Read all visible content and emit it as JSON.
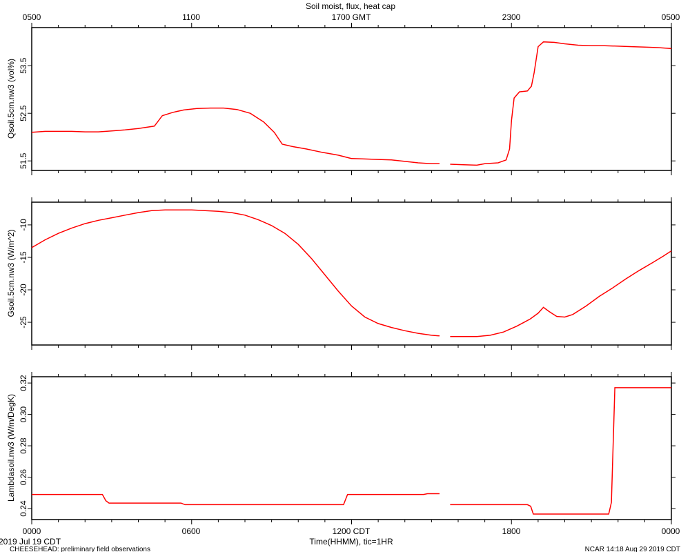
{
  "chart_data": {
    "type": "line",
    "title": "Soil moist, flux, heat cap",
    "top_axis": {
      "ticks": [
        "0500",
        "1100",
        "1700 GMT",
        "2300",
        "0500"
      ]
    },
    "bottom_axis": {
      "ticks": [
        "0000",
        "0600",
        "1200 CDT",
        "1800",
        "0000"
      ],
      "xlabel": "Time(HHMM), tic=1HR",
      "date_label": "2019 Jul 19 CDT"
    },
    "x_range_hours": [
      0,
      24
    ],
    "series_color": "#ff0000",
    "grid": false,
    "footer_left": "CHEESEHEAD: preliminary field observations",
    "footer_right": "NCAR 14:18 Aug 29 2019 CDT",
    "panels": [
      {
        "ylabel": "Qsoil.5cm.nw3 (vol%)",
        "ylim": [
          51.3,
          54.3
        ],
        "yticks": [
          51.5,
          52.5,
          53.5
        ],
        "ytick_labels": [
          "51.5",
          "52.5",
          "53.5"
        ],
        "segments": [
          [
            [
              0,
              52.1
            ],
            [
              0.5,
              52.12
            ],
            [
              1.0,
              52.12
            ],
            [
              1.5,
              52.12
            ],
            [
              2.0,
              52.11
            ],
            [
              2.5,
              52.11
            ],
            [
              3.0,
              52.13
            ],
            [
              3.5,
              52.15
            ],
            [
              4.0,
              52.18
            ],
            [
              4.6,
              52.23
            ],
            [
              4.9,
              52.45
            ],
            [
              5.3,
              52.52
            ],
            [
              5.7,
              52.57
            ],
            [
              6.2,
              52.6
            ],
            [
              6.7,
              52.61
            ],
            [
              7.2,
              52.61
            ],
            [
              7.7,
              52.58
            ],
            [
              8.2,
              52.5
            ],
            [
              8.7,
              52.32
            ],
            [
              9.1,
              52.1
            ],
            [
              9.4,
              51.85
            ],
            [
              9.8,
              51.8
            ],
            [
              10.3,
              51.75
            ],
            [
              10.9,
              51.68
            ],
            [
              11.5,
              51.62
            ],
            [
              12.0,
              51.55
            ],
            [
              12.5,
              51.54
            ],
            [
              13.0,
              51.53
            ],
            [
              13.5,
              51.52
            ],
            [
              14.0,
              51.49
            ],
            [
              14.5,
              51.46
            ],
            [
              15.0,
              51.44
            ],
            [
              15.3,
              51.44
            ]
          ],
          [
            [
              15.7,
              51.43
            ],
            [
              16.2,
              51.42
            ],
            [
              16.7,
              51.41
            ],
            [
              17.0,
              51.44
            ],
            [
              17.5,
              51.46
            ],
            [
              17.8,
              51.52
            ],
            [
              17.93,
              51.75
            ],
            [
              18.0,
              52.35
            ],
            [
              18.1,
              52.82
            ],
            [
              18.3,
              52.95
            ],
            [
              18.6,
              52.97
            ],
            [
              18.75,
              53.07
            ],
            [
              18.85,
              53.35
            ],
            [
              19.0,
              53.9
            ],
            [
              19.2,
              54.0
            ],
            [
              19.6,
              53.99
            ],
            [
              20.0,
              53.96
            ],
            [
              20.5,
              53.93
            ],
            [
              21.0,
              53.92
            ],
            [
              21.5,
              53.92
            ],
            [
              22.0,
              53.91
            ],
            [
              22.5,
              53.9
            ],
            [
              23.0,
              53.89
            ],
            [
              23.5,
              53.88
            ],
            [
              24.0,
              53.86
            ]
          ]
        ]
      },
      {
        "ylabel": "Gsoil.5cm.nw3 (W/m^2)",
        "ylim": [
          -28.5,
          -6.5
        ],
        "yticks": [
          -25,
          -20,
          -15,
          -10
        ],
        "ytick_labels": [
          "-25",
          "-20",
          "-15",
          "-10"
        ],
        "segments": [
          [
            [
              0,
              -13.5
            ],
            [
              0.5,
              -12.3
            ],
            [
              1.0,
              -11.3
            ],
            [
              1.5,
              -10.5
            ],
            [
              2.0,
              -9.8
            ],
            [
              2.5,
              -9.3
            ],
            [
              3.0,
              -8.9
            ],
            [
              3.5,
              -8.5
            ],
            [
              4.0,
              -8.1
            ],
            [
              4.5,
              -7.8
            ],
            [
              5.0,
              -7.7
            ],
            [
              5.5,
              -7.7
            ],
            [
              6.0,
              -7.7
            ],
            [
              6.5,
              -7.8
            ],
            [
              7.0,
              -7.9
            ],
            [
              7.5,
              -8.1
            ],
            [
              8.0,
              -8.5
            ],
            [
              8.5,
              -9.2
            ],
            [
              9.0,
              -10.1
            ],
            [
              9.5,
              -11.3
            ],
            [
              10.0,
              -13.0
            ],
            [
              10.5,
              -15.2
            ],
            [
              11.0,
              -17.7
            ],
            [
              11.5,
              -20.2
            ],
            [
              12.0,
              -22.5
            ],
            [
              12.5,
              -24.2
            ],
            [
              13.0,
              -25.2
            ],
            [
              13.5,
              -25.8
            ],
            [
              14.0,
              -26.3
            ],
            [
              14.5,
              -26.7
            ],
            [
              15.0,
              -27.0
            ],
            [
              15.3,
              -27.1
            ]
          ],
          [
            [
              15.7,
              -27.2
            ],
            [
              16.2,
              -27.2
            ],
            [
              16.7,
              -27.2
            ],
            [
              17.2,
              -27.0
            ],
            [
              17.7,
              -26.5
            ],
            [
              18.2,
              -25.6
            ],
            [
              18.7,
              -24.5
            ],
            [
              19.0,
              -23.6
            ],
            [
              19.2,
              -22.7
            ],
            [
              19.4,
              -23.3
            ],
            [
              19.7,
              -24.1
            ],
            [
              20.0,
              -24.2
            ],
            [
              20.3,
              -23.8
            ],
            [
              20.8,
              -22.5
            ],
            [
              21.3,
              -21.0
            ],
            [
              21.8,
              -19.7
            ],
            [
              22.3,
              -18.3
            ],
            [
              22.8,
              -17.0
            ],
            [
              23.3,
              -15.8
            ],
            [
              23.7,
              -14.8
            ],
            [
              24.0,
              -14.0
            ]
          ]
        ]
      },
      {
        "ylabel": "Lambdasoil.nw3 (W/m/DegK)",
        "ylim": [
          0.233,
          0.324
        ],
        "yticks": [
          0.24,
          0.26,
          0.28,
          0.3,
          0.32
        ],
        "ytick_labels": [
          "0.24",
          "0.26",
          "0.28",
          "0.30",
          "0.32"
        ],
        "segments": [
          [
            [
              0,
              0.249
            ],
            [
              2.65,
              0.249
            ],
            [
              2.78,
              0.245
            ],
            [
              2.9,
              0.2435
            ],
            [
              5.6,
              0.2435
            ],
            [
              5.75,
              0.2425
            ],
            [
              11.7,
              0.2425
            ],
            [
              11.85,
              0.249
            ],
            [
              14.7,
              0.249
            ],
            [
              14.85,
              0.2495
            ],
            [
              15.3,
              0.2495
            ]
          ],
          [
            [
              15.7,
              0.2425
            ],
            [
              18.6,
              0.2425
            ],
            [
              18.72,
              0.2415
            ],
            [
              18.82,
              0.2365
            ],
            [
              21.65,
              0.2365
            ],
            [
              21.75,
              0.244
            ],
            [
              21.88,
              0.317
            ],
            [
              24.0,
              0.317
            ]
          ]
        ]
      }
    ]
  }
}
